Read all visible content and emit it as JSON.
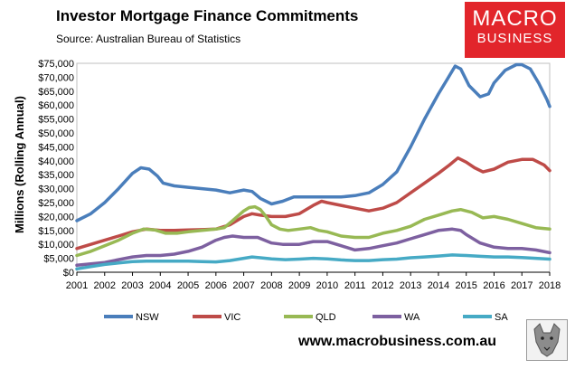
{
  "header": {
    "title": "Investor Mortgage Finance Commitments",
    "source": "Source: Australian Bureau of Statistics"
  },
  "logo": {
    "line1": "MACRO",
    "line2": "BUSINESS"
  },
  "footer": {
    "url": "www.macrobusiness.com.au"
  },
  "colors": {
    "NSW": "#4a7ebb",
    "VIC": "#be4b48",
    "QLD": "#98b954",
    "WA": "#7d60a0",
    "SA": "#46aac5",
    "brand": "#e2252b"
  },
  "chart_data": {
    "type": "line",
    "ylabel": "Millions (Rolling Annual)",
    "xlabel": "",
    "ylim": [
      0,
      75000
    ],
    "yticks": [
      "$0",
      "$5,000",
      "$10,000",
      "$15,000",
      "$20,000",
      "$25,000",
      "$30,000",
      "$35,000",
      "$40,000",
      "$45,000",
      "$50,000",
      "$55,000",
      "$60,000",
      "$65,000",
      "$70,000",
      "$75,000"
    ],
    "xlim": [
      2001,
      2018
    ],
    "xticks": [
      "2001",
      "2002",
      "2003",
      "2004",
      "2005",
      "2006",
      "2007",
      "2008",
      "2009",
      "2010",
      "2011",
      "2012",
      "2013",
      "2014",
      "2015",
      "2016",
      "2017",
      "2018"
    ],
    "grid": false,
    "legend_position": "bottom",
    "series": [
      {
        "name": "NSW",
        "points": [
          [
            2001,
            18500
          ],
          [
            2001.5,
            21000
          ],
          [
            2002,
            25000
          ],
          [
            2002.5,
            30000
          ],
          [
            2003,
            35500
          ],
          [
            2003.3,
            37500
          ],
          [
            2003.6,
            37000
          ],
          [
            2003.9,
            34500
          ],
          [
            2004.1,
            32000
          ],
          [
            2004.5,
            31000
          ],
          [
            2005,
            30500
          ],
          [
            2005.5,
            30000
          ],
          [
            2006,
            29500
          ],
          [
            2006.5,
            28500
          ],
          [
            2007,
            29500
          ],
          [
            2007.3,
            29000
          ],
          [
            2007.6,
            26500
          ],
          [
            2008,
            24500
          ],
          [
            2008.4,
            25500
          ],
          [
            2008.8,
            27000
          ],
          [
            2009.5,
            27000
          ],
          [
            2010,
            27000
          ],
          [
            2010.5,
            27000
          ],
          [
            2011,
            27500
          ],
          [
            2011.5,
            28500
          ],
          [
            2012,
            31500
          ],
          [
            2012.5,
            36000
          ],
          [
            2013,
            45000
          ],
          [
            2013.5,
            55000
          ],
          [
            2014,
            64000
          ],
          [
            2014.3,
            69000
          ],
          [
            2014.6,
            74000
          ],
          [
            2014.8,
            73000
          ],
          [
            2015.1,
            67000
          ],
          [
            2015.5,
            63000
          ],
          [
            2015.8,
            64000
          ],
          [
            2016,
            68000
          ],
          [
            2016.4,
            72500
          ],
          [
            2016.8,
            74500
          ],
          [
            2017,
            74500
          ],
          [
            2017.3,
            73000
          ],
          [
            2017.6,
            68000
          ],
          [
            2017.9,
            62000
          ],
          [
            2018,
            59500
          ]
        ]
      },
      {
        "name": "VIC",
        "points": [
          [
            2001,
            8500
          ],
          [
            2001.5,
            10000
          ],
          [
            2002,
            11500
          ],
          [
            2002.5,
            13000
          ],
          [
            2003,
            14500
          ],
          [
            2003.5,
            15500
          ],
          [
            2004,
            15000
          ],
          [
            2004.5,
            15000
          ],
          [
            2005,
            15200
          ],
          [
            2005.5,
            15300
          ],
          [
            2006,
            15500
          ],
          [
            2006.5,
            17000
          ],
          [
            2007,
            20000
          ],
          [
            2007.3,
            21000
          ],
          [
            2007.6,
            20500
          ],
          [
            2008,
            20000
          ],
          [
            2008.5,
            20000
          ],
          [
            2009,
            21000
          ],
          [
            2009.5,
            24000
          ],
          [
            2009.8,
            25500
          ],
          [
            2010,
            25000
          ],
          [
            2010.5,
            24000
          ],
          [
            2011,
            23000
          ],
          [
            2011.5,
            22000
          ],
          [
            2012,
            23000
          ],
          [
            2012.5,
            25000
          ],
          [
            2013,
            28500
          ],
          [
            2013.5,
            32000
          ],
          [
            2014,
            35500
          ],
          [
            2014.4,
            38500
          ],
          [
            2014.7,
            41000
          ],
          [
            2015,
            39500
          ],
          [
            2015.3,
            37500
          ],
          [
            2015.6,
            36000
          ],
          [
            2016,
            37000
          ],
          [
            2016.5,
            39500
          ],
          [
            2017,
            40500
          ],
          [
            2017.4,
            40500
          ],
          [
            2017.8,
            38500
          ],
          [
            2018,
            36500
          ]
        ]
      },
      {
        "name": "QLD",
        "points": [
          [
            2001,
            6000
          ],
          [
            2001.5,
            7500
          ],
          [
            2002,
            9500
          ],
          [
            2002.5,
            11500
          ],
          [
            2003,
            14000
          ],
          [
            2003.4,
            15500
          ],
          [
            2003.8,
            15200
          ],
          [
            2004.2,
            14000
          ],
          [
            2004.6,
            14000
          ],
          [
            2005,
            14500
          ],
          [
            2005.5,
            15000
          ],
          [
            2006,
            15500
          ],
          [
            2006.3,
            16000
          ],
          [
            2006.6,
            18500
          ],
          [
            2007,
            22000
          ],
          [
            2007.2,
            23200
          ],
          [
            2007.4,
            23500
          ],
          [
            2007.6,
            22500
          ],
          [
            2007.8,
            20000
          ],
          [
            2008,
            17000
          ],
          [
            2008.3,
            15500
          ],
          [
            2008.6,
            15000
          ],
          [
            2009,
            15500
          ],
          [
            2009.4,
            16000
          ],
          [
            2009.7,
            15000
          ],
          [
            2010,
            14500
          ],
          [
            2010.5,
            13000
          ],
          [
            2011,
            12500
          ],
          [
            2011.5,
            12500
          ],
          [
            2012,
            14000
          ],
          [
            2012.5,
            15000
          ],
          [
            2013,
            16500
          ],
          [
            2013.5,
            19000
          ],
          [
            2014,
            20500
          ],
          [
            2014.5,
            22000
          ],
          [
            2014.8,
            22500
          ],
          [
            2015.2,
            21500
          ],
          [
            2015.6,
            19500
          ],
          [
            2016,
            20000
          ],
          [
            2016.5,
            19000
          ],
          [
            2017,
            17500
          ],
          [
            2017.5,
            16000
          ],
          [
            2018,
            15500
          ]
        ]
      },
      {
        "name": "WA",
        "points": [
          [
            2001,
            2500
          ],
          [
            2001.5,
            3000
          ],
          [
            2002,
            3500
          ],
          [
            2002.5,
            4500
          ],
          [
            2003,
            5500
          ],
          [
            2003.5,
            6000
          ],
          [
            2004,
            6000
          ],
          [
            2004.5,
            6500
          ],
          [
            2005,
            7500
          ],
          [
            2005.5,
            9000
          ],
          [
            2006,
            11500
          ],
          [
            2006.3,
            12500
          ],
          [
            2006.6,
            13000
          ],
          [
            2007,
            12500
          ],
          [
            2007.5,
            12500
          ],
          [
            2008,
            10500
          ],
          [
            2008.4,
            10000
          ],
          [
            2009,
            10000
          ],
          [
            2009.5,
            11000
          ],
          [
            2010,
            11000
          ],
          [
            2010.5,
            9500
          ],
          [
            2011,
            8000
          ],
          [
            2011.5,
            8500
          ],
          [
            2012,
            9500
          ],
          [
            2012.5,
            10500
          ],
          [
            2013,
            12000
          ],
          [
            2013.5,
            13500
          ],
          [
            2014,
            15000
          ],
          [
            2014.5,
            15500
          ],
          [
            2014.8,
            15000
          ],
          [
            2015,
            13500
          ],
          [
            2015.5,
            10500
          ],
          [
            2016,
            9000
          ],
          [
            2016.5,
            8500
          ],
          [
            2017,
            8500
          ],
          [
            2017.5,
            8000
          ],
          [
            2018,
            7000
          ]
        ]
      },
      {
        "name": "SA",
        "points": [
          [
            2001,
            1200
          ],
          [
            2001.5,
            2000
          ],
          [
            2002,
            2800
          ],
          [
            2002.5,
            3300
          ],
          [
            2003,
            3800
          ],
          [
            2003.5,
            4000
          ],
          [
            2004,
            4000
          ],
          [
            2004.5,
            4000
          ],
          [
            2005,
            4000
          ],
          [
            2005.5,
            3800
          ],
          [
            2006,
            3700
          ],
          [
            2006.5,
            4200
          ],
          [
            2007,
            5000
          ],
          [
            2007.3,
            5500
          ],
          [
            2007.6,
            5200
          ],
          [
            2008,
            4800
          ],
          [
            2008.5,
            4500
          ],
          [
            2009,
            4700
          ],
          [
            2009.5,
            5000
          ],
          [
            2010,
            4800
          ],
          [
            2010.5,
            4400
          ],
          [
            2011,
            4200
          ],
          [
            2011.5,
            4200
          ],
          [
            2012,
            4500
          ],
          [
            2012.5,
            4700
          ],
          [
            2013,
            5200
          ],
          [
            2013.5,
            5500
          ],
          [
            2014,
            5800
          ],
          [
            2014.5,
            6200
          ],
          [
            2015,
            6000
          ],
          [
            2015.5,
            5700
          ],
          [
            2016,
            5500
          ],
          [
            2016.5,
            5500
          ],
          [
            2017,
            5300
          ],
          [
            2017.5,
            5000
          ],
          [
            2018,
            4700
          ]
        ]
      }
    ]
  }
}
